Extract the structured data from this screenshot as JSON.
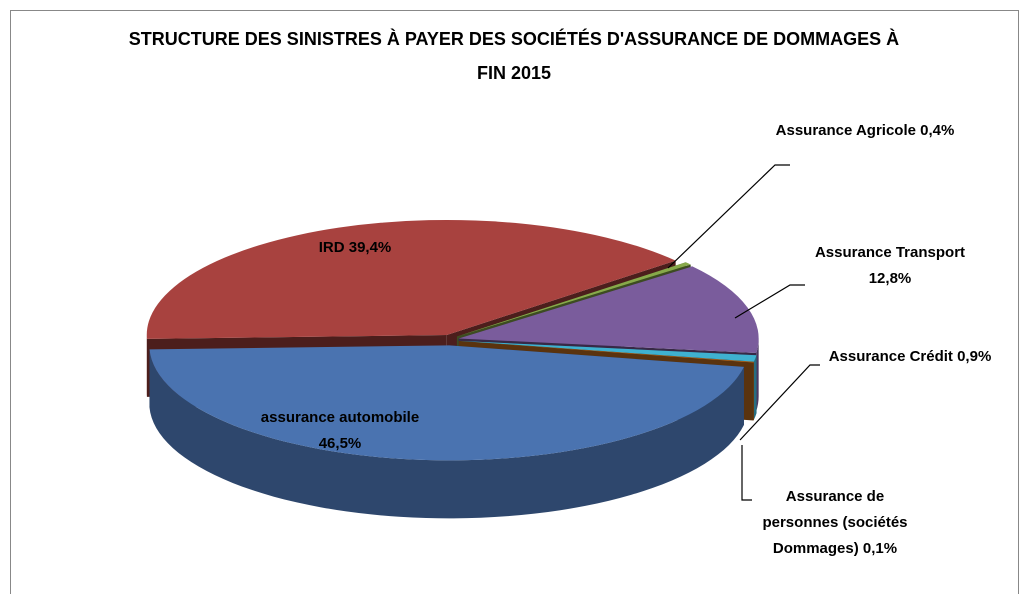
{
  "chart_data": {
    "type": "pie3d",
    "title": "STRUCTURE DES SINISTRES À PAYER DES SOCIÉTÉS D'ASSURANCE DE DOMMAGES À FIN 2015",
    "categories": [
      "assurance automobile",
      "IRD",
      "Assurance Agricole",
      "Assurance Transport",
      "Assurance Crédit",
      "Assurance de personnes (sociétés Dommages)"
    ],
    "values": [
      46.5,
      39.4,
      0.4,
      12.8,
      0.9,
      0.1
    ],
    "value_labels": [
      "46,5%",
      "39,4%",
      "0,4%",
      "12,8%",
      "0,9%",
      "0,1%"
    ],
    "colors": [
      "#4a73b0",
      "#a8423f",
      "#87a94a",
      "#7a5c9c",
      "#3fb1d0",
      "#c8711f"
    ]
  }
}
